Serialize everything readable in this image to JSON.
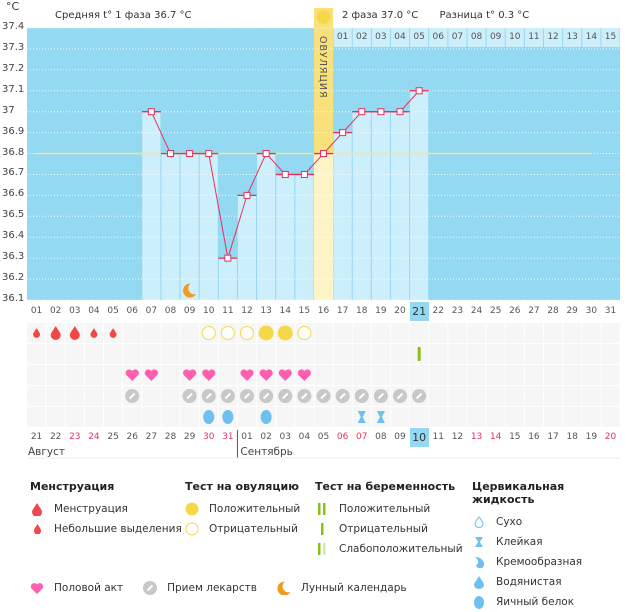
{
  "unit_label": "°C",
  "header": {
    "phase1": "Средняя t° 1 фаза 36.7 °C",
    "phase2": "2 фаза 37.0 °C",
    "diff": "Разница t° 0.3 °C"
  },
  "ovulation_label": "ОВУЛЯЦИЯ",
  "ovulation_day": 16,
  "today_day": 21,
  "colors": {
    "bg": "#93d9f2",
    "bar": "#cdeefb",
    "line": "#e8305a",
    "coverline": "#f5e68a",
    "ovulation": "#f8e07a",
    "menses": "#f04848",
    "heart": "#ff5fb0",
    "pill": "#c8c8c8",
    "cervical": "#6fc0ee",
    "ovutest": "#f5d84a",
    "pregtest": "#8cbf1a",
    "weekend": "#e8305a"
  },
  "chart_data": {
    "type": "line",
    "ylabel": "°C",
    "ylim": [
      36.1,
      37.4
    ],
    "yticks": [
      "37.4",
      "37.3",
      "37.2",
      "37.1",
      "37",
      "36.9",
      "36.8",
      "36.7",
      "36.6",
      "36.5",
      "36.4",
      "36.3",
      "36.2",
      "36.1"
    ],
    "cycle_days": [
      "01",
      "02",
      "03",
      "04",
      "05",
      "06",
      "07",
      "08",
      "09",
      "10",
      "11",
      "12",
      "13",
      "14",
      "15",
      "16",
      "17",
      "18",
      "19",
      "20",
      "21",
      "22",
      "23",
      "24",
      "25",
      "26",
      "27",
      "28",
      "29",
      "30",
      "31"
    ],
    "temperatures": [
      null,
      null,
      null,
      null,
      null,
      null,
      37.0,
      36.8,
      36.8,
      36.8,
      36.3,
      36.6,
      36.8,
      36.7,
      36.7,
      36.8,
      36.9,
      37.0,
      37.0,
      37.0,
      37.1
    ],
    "coverline": 36.8,
    "luteal_days": [
      "01",
      "02",
      "03",
      "04",
      "05",
      "06",
      "07",
      "08",
      "09",
      "10",
      "11",
      "12",
      "13",
      "14",
      "15"
    ],
    "dates": [
      "21",
      "22",
      "23",
      "24",
      "25",
      "26",
      "27",
      "28",
      "29",
      "30",
      "31",
      "01",
      "02",
      "03",
      "04",
      "05",
      "06",
      "07",
      "08",
      "09",
      "10",
      "11",
      "12",
      "13",
      "14",
      "15",
      "16",
      "17",
      "18",
      "19",
      "20"
    ],
    "weekend_days": [
      3,
      4,
      10,
      11,
      17,
      18,
      24,
      25,
      31
    ],
    "months": [
      "Август",
      "Сентябрь"
    ],
    "moon_day": 9,
    "menstruation": {
      "1": "light",
      "2": "heavy",
      "3": "heavy",
      "4": "light",
      "5": "light"
    },
    "ovulation_tests": {
      "10": "negative",
      "11": "negative",
      "12": "negative",
      "13": "positive",
      "14": "positive",
      "15": "negative"
    },
    "pregnancy_tests": {
      "21": "negative"
    },
    "intercourse": [
      6,
      7,
      9,
      10,
      12,
      13,
      14,
      15
    ],
    "medication": [
      6,
      9,
      10,
      11,
      12,
      13,
      14,
      15,
      16,
      17,
      18,
      19,
      20,
      21
    ],
    "cervical_fluid": {
      "10": "eggwhite",
      "11": "eggwhite",
      "13": "eggwhite",
      "18": "sticky",
      "19": "sticky"
    }
  },
  "legend": {
    "menstruation": {
      "title": "Менструация",
      "items": [
        "Менструация",
        "Небольшие выделения"
      ]
    },
    "ovulation_test": {
      "title": "Тест на овуляцию",
      "items": [
        "Положительный",
        "Отрицательный"
      ]
    },
    "pregnancy_test": {
      "title": "Тест на беременность",
      "items": [
        "Положительный",
        "Отрицательный",
        "Слабоположительный"
      ]
    },
    "cervical": {
      "title": "Цервикальная жидкость",
      "items": [
        "Сухо",
        "Клейкая",
        "Кремообразная",
        "Водянистая",
        "Яичный белок"
      ]
    },
    "other": [
      "Половой акт",
      "Прием лекарств",
      "Лунный календарь"
    ]
  }
}
